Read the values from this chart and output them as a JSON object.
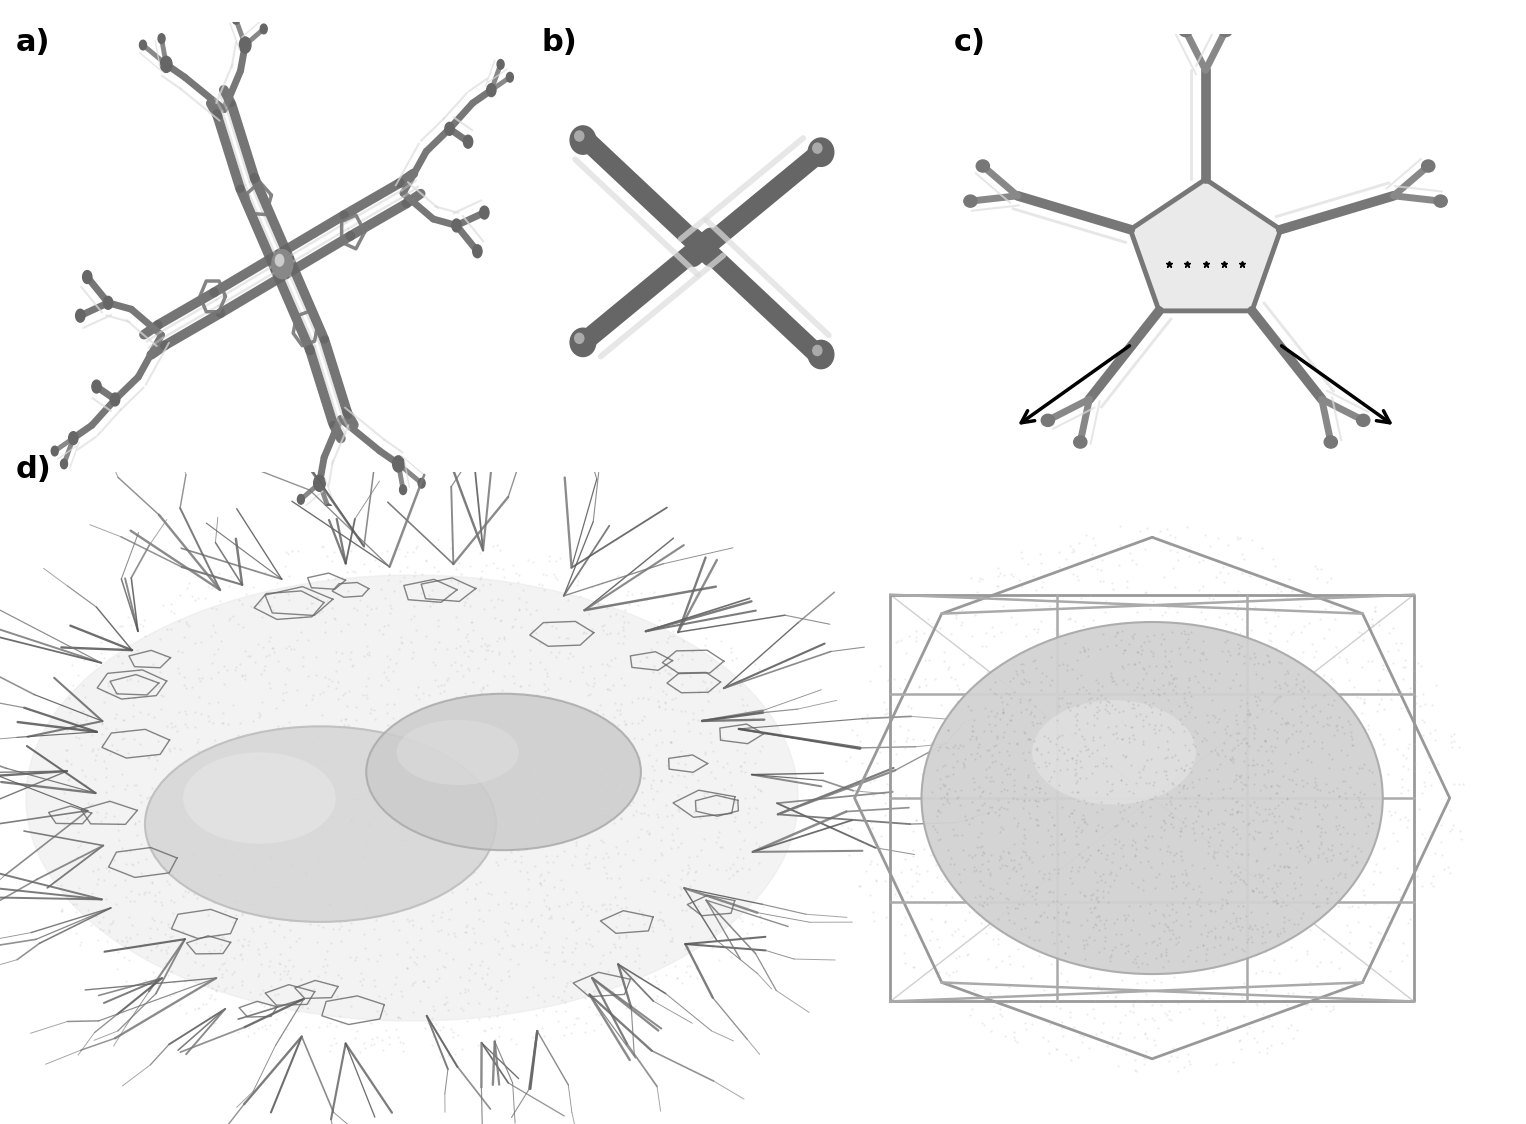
{
  "panel_labels": [
    "a)",
    "b)",
    "c)",
    "d)"
  ],
  "label_fontsize": 22,
  "label_fontweight": "bold",
  "bg_color": "#ffffff",
  "gray_dark": "#555555",
  "gray_mid": "#888888",
  "gray_light": "#bbbbbb",
  "gray_highlight": "#dddddd",
  "sphere_face": "#c8c8c8",
  "sphere_edge": "#999999",
  "cage_line": "#aaaaaa",
  "dot_fill": "#d0d0d0"
}
